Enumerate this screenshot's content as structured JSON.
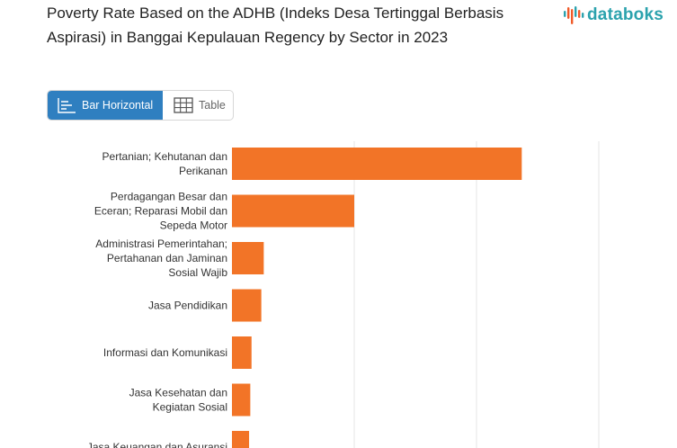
{
  "header": {
    "title": "Poverty Rate Based on the ADHB (Indeks Desa Tertinggal Berbasis Aspirasi) in Banggai Kepulauan Regency by Sector in 2023",
    "logo_text": "databoks"
  },
  "view_toggle": {
    "bar_label": "Bar Horizontal",
    "table_label": "Table",
    "active": "bar"
  },
  "colors": {
    "bar": "#f27427",
    "toggle_active": "#2f7fc0",
    "brand": "#2ba2ad",
    "logo_accent": "#f05a28",
    "grid": "#e6e6e6"
  },
  "chart_data": {
    "type": "bar",
    "orientation": "horizontal",
    "categories": [
      [
        "Pertanian; Kehutanan dan",
        "Perikanan"
      ],
      [
        "Perdagangan Besar dan",
        "Eceran; Reparasi Mobil dan",
        "Sepeda Motor"
      ],
      [
        "Administrasi Pemerintahan;",
        "Pertahanan dan Jaminan",
        "Sosial Wajib"
      ],
      [
        "Jasa Pendidikan"
      ],
      [
        "Informasi dan Komunikasi"
      ],
      [
        "Jasa Kesehatan dan",
        "Kegiatan Sosial"
      ],
      [
        "Jasa Keuangan dan Asuransi"
      ]
    ],
    "values": [
      2.37,
      1.0,
      0.26,
      0.24,
      0.16,
      0.15,
      0.14
    ],
    "xlim": [
      0,
      3
    ],
    "grid": true
  }
}
